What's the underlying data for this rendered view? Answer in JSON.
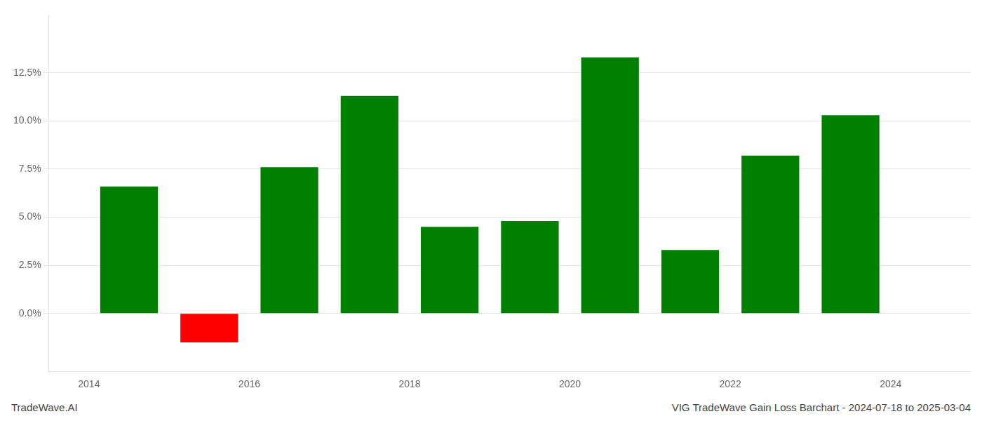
{
  "chart_data": {
    "type": "bar",
    "x": [
      2014.5,
      2015.5,
      2016.5,
      2017.5,
      2018.5,
      2019.5,
      2020.5,
      2021.5,
      2022.5,
      2023.5
    ],
    "values": [
      0.066,
      -0.015,
      0.076,
      0.113,
      0.045,
      0.048,
      0.133,
      0.033,
      0.082,
      0.103
    ],
    "colors": [
      "#008000",
      "#ff0000",
      "#008000",
      "#008000",
      "#008000",
      "#008000",
      "#008000",
      "#008000",
      "#008000",
      "#008000"
    ],
    "xlim": [
      2013.5,
      2025.0
    ],
    "xticks": [
      2014,
      2016,
      2018,
      2020,
      2022,
      2024
    ],
    "ylim": [
      -0.03,
      0.155
    ],
    "yticks": [
      {
        "value": 0.0,
        "label": "0.0%"
      },
      {
        "value": 0.025,
        "label": "2.5%"
      },
      {
        "value": 0.05,
        "label": "5.0%"
      },
      {
        "value": 0.075,
        "label": "7.5%"
      },
      {
        "value": 0.1,
        "label": "10.0%"
      },
      {
        "value": 0.125,
        "label": "12.5%"
      }
    ],
    "grid": true,
    "annotations": [
      "TradeWave.AI",
      "VIG TradeWave Gain Loss Barchart - 2024-07-18 to 2025-03-04"
    ]
  }
}
